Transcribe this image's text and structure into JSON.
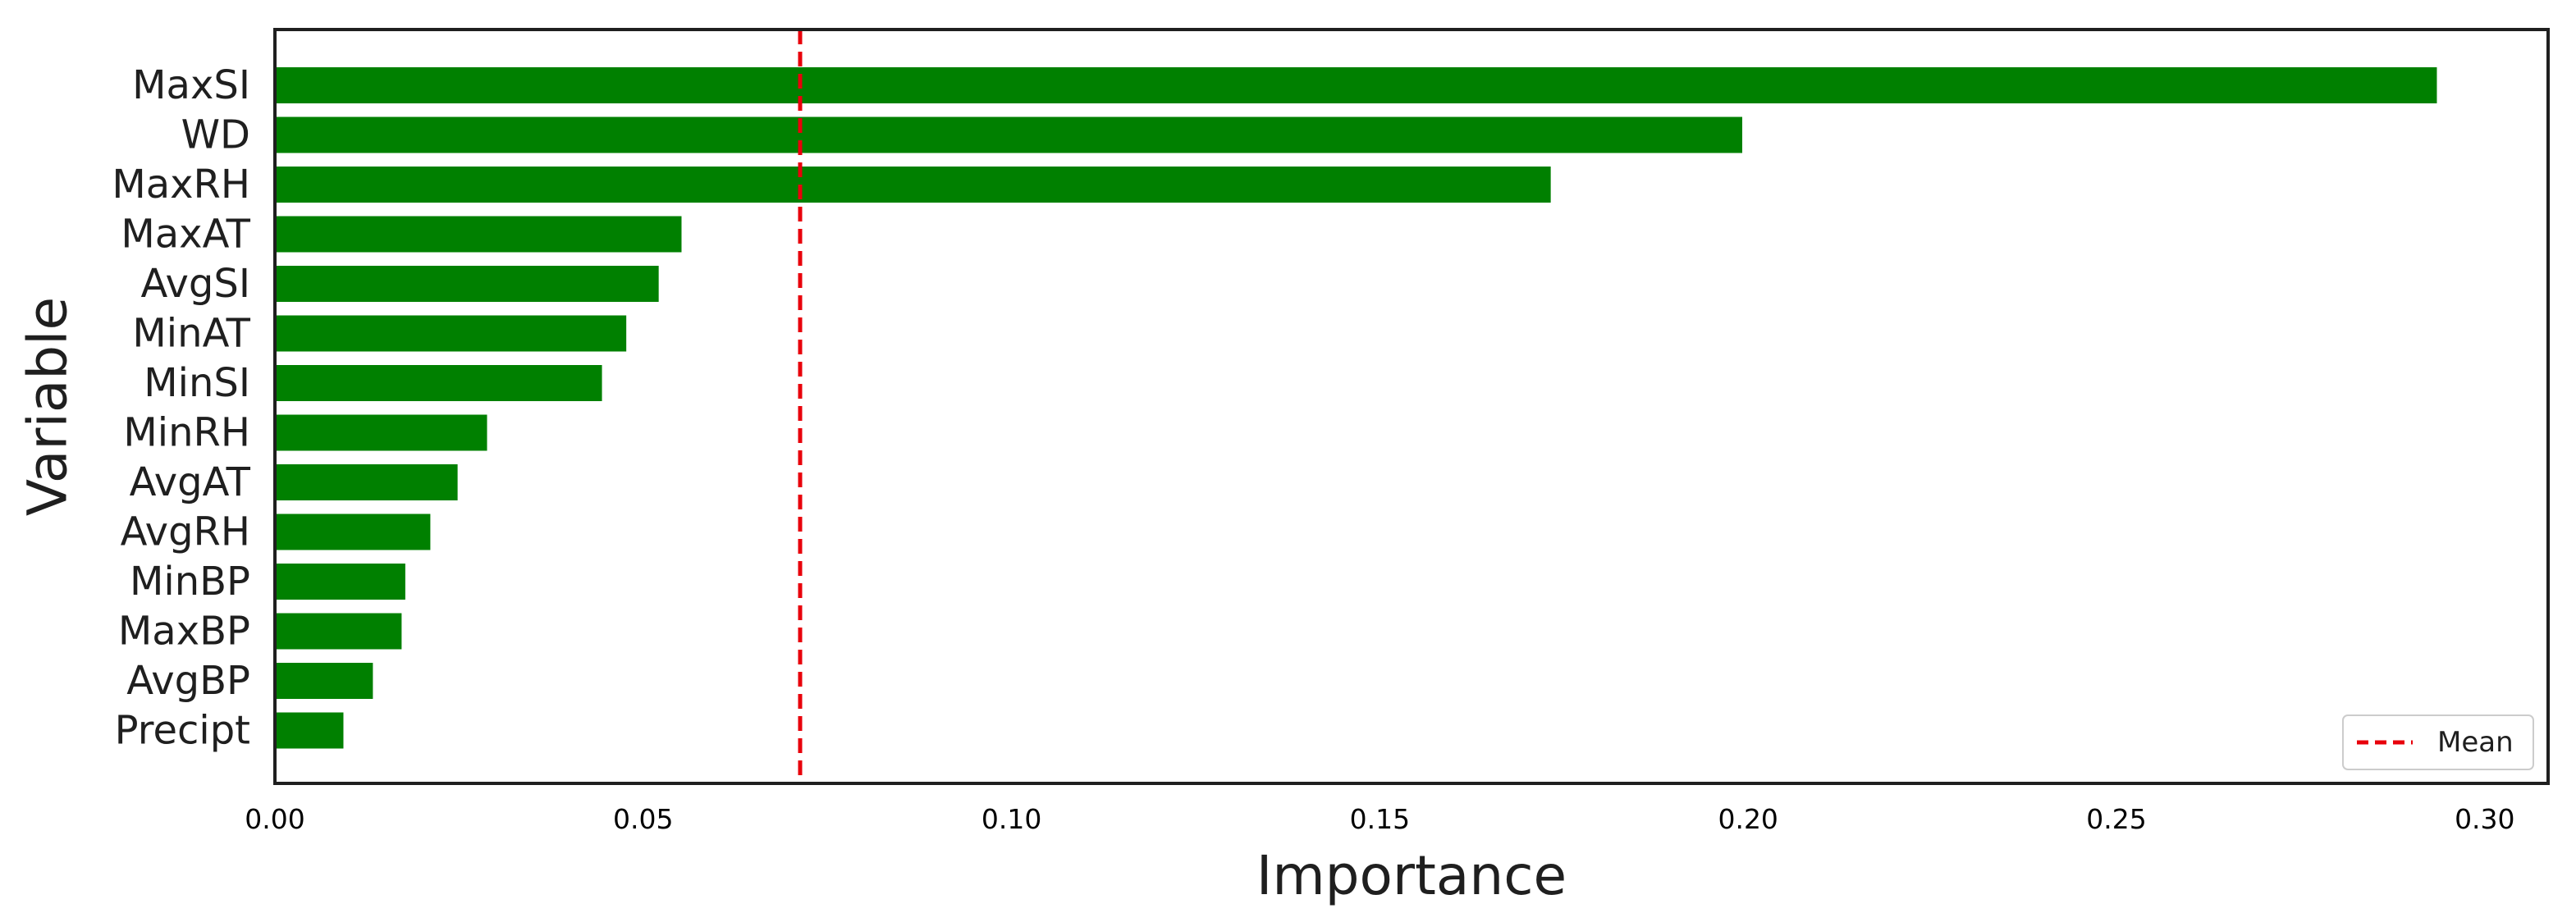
{
  "chart_data": {
    "type": "bar",
    "orientation": "horizontal",
    "title": "",
    "xlabel": "Importance",
    "ylabel": "Variable",
    "categories": [
      "MaxSI",
      "WD",
      "MaxRH",
      "MaxAT",
      "AvgSI",
      "MinAT",
      "MinSI",
      "MinRH",
      "AvgAT",
      "AvgRH",
      "MinBP",
      "MaxBP",
      "AvgBP",
      "Precipt"
    ],
    "values": [
      0.2935,
      0.1992,
      0.1732,
      0.0552,
      0.0521,
      0.0477,
      0.0444,
      0.0288,
      0.0248,
      0.0211,
      0.0177,
      0.0172,
      0.0133,
      0.0093
    ],
    "xlim": [
      0.0,
      0.3086
    ],
    "xticks": [
      0.0,
      0.05,
      0.1,
      0.15,
      0.2,
      0.25,
      0.3
    ],
    "xtick_labels": [
      "0.00",
      "0.05",
      "0.10",
      "0.15",
      "0.20",
      "0.25",
      "0.30"
    ],
    "mean_line": {
      "value": 0.0713,
      "label": "Mean",
      "color": "#e8000b",
      "style": "dashed"
    },
    "bar_color": "#008000",
    "grid": false,
    "legend": {
      "position": "lower-right",
      "entries": [
        "Mean"
      ]
    }
  }
}
